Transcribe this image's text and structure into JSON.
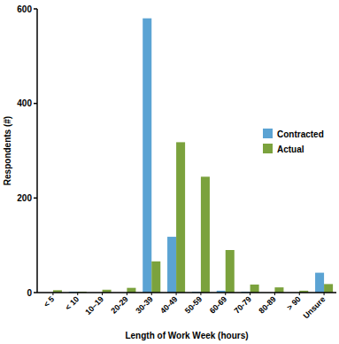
{
  "chart_data": {
    "type": "bar",
    "x_label": "Length of Work Week (hours)",
    "y_label": "Respondents (#)",
    "categories": [
      "< 5",
      "< 10",
      "10–19",
      "20-29",
      "30-39",
      "40-49",
      "50-59",
      "60-69",
      "70-79",
      "80-89",
      "> 90",
      "Unsure"
    ],
    "series": [
      {
        "name": "Contracted",
        "color": "#5ba3d3",
        "values": [
          0,
          2,
          0,
          0,
          580,
          118,
          2,
          4,
          2,
          0,
          0,
          42
        ]
      },
      {
        "name": "Actual",
        "color": "#7ba23d",
        "values": [
          5,
          2,
          6,
          10,
          66,
          318,
          245,
          90,
          17,
          11,
          4,
          18
        ]
      }
    ],
    "ylim": [
      0,
      600
    ],
    "yticks": [
      0,
      200,
      400,
      600
    ],
    "legend": "right",
    "grid": false
  }
}
